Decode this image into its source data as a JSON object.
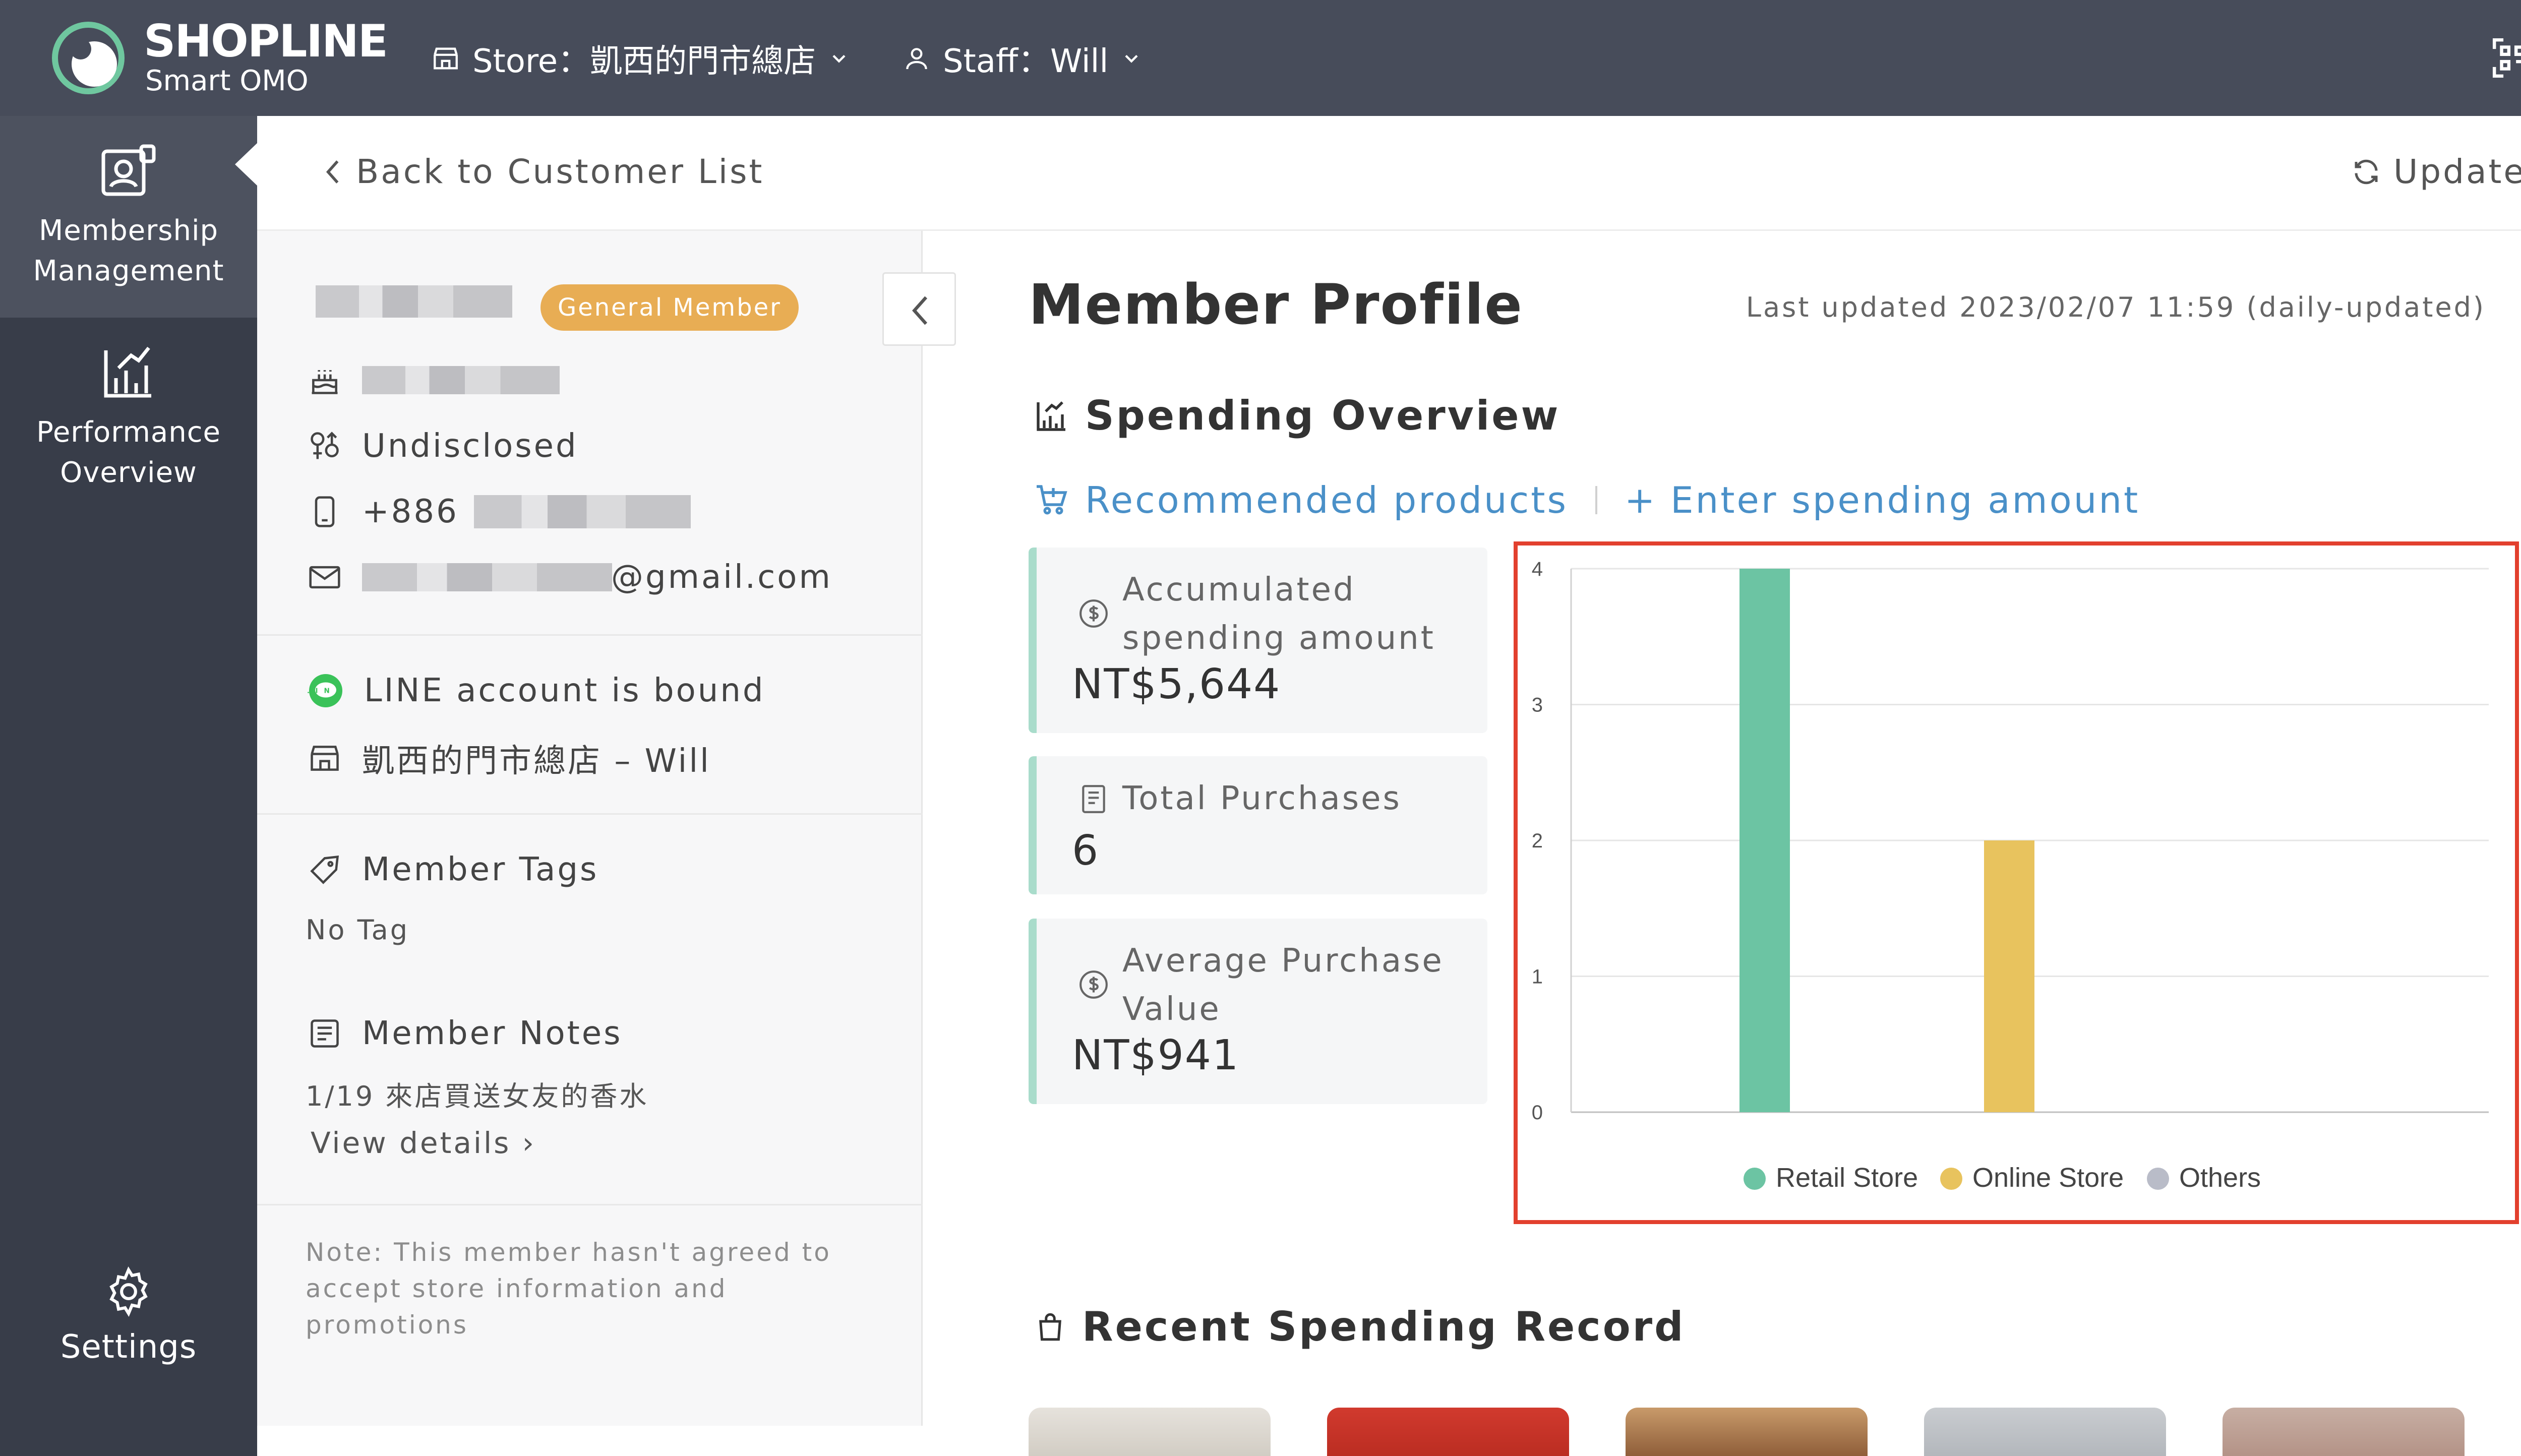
{
  "topbar": {
    "brand": "SHOPLINE",
    "brand_sub": "Smart OMO",
    "store_label": "Store：凱西的門市總店",
    "staff_label": "Staff：Will"
  },
  "nav": {
    "items": [
      {
        "label": "Membership Management",
        "icon": "member-card-icon",
        "active": true
      },
      {
        "label": "Performance Overview",
        "icon": "chart-icon",
        "active": false
      },
      {
        "label": "Settings",
        "icon": "gear-icon",
        "active": false
      }
    ]
  },
  "header": {
    "back_label": "Back to Customer List",
    "update_label": "Update"
  },
  "member": {
    "tier": "General Member",
    "gender": "Undisclosed",
    "phone_prefix": "+886",
    "email_suffix": "@gmail.com",
    "line_status": "LINE account is bound",
    "store_staff": "凱西的門市總店 – Will",
    "tags_title": "Member Tags",
    "tags_value": "No Tag",
    "notes_title": "Member Notes",
    "notes_value": "1/19 來店買送女友的香水",
    "view_details": "View details ›",
    "consent_note": "Note: This member hasn't agreed to accept store information and promotions"
  },
  "profile": {
    "title": "Member Profile",
    "last_updated": "Last updated 2023/02/07 11:59 (daily-updated)",
    "spending_title": "Spending Overview",
    "recommended": "Recommended products",
    "enter_amount": "+ Enter spending amount",
    "recent_title": "Recent Spending Record",
    "stats": [
      {
        "label": "Accumulated spending amount",
        "value": "NT$5,644",
        "icon": "dollar-icon"
      },
      {
        "label": "Total Purchases",
        "value": "6",
        "icon": "receipt-icon"
      },
      {
        "label": "Average Purchase Value",
        "value": "NT$941",
        "icon": "dollar-icon"
      }
    ]
  },
  "colors": {
    "retail": "#6cc4a3",
    "online": "#e8c35e",
    "others": "#b9bcc8",
    "highlight": "#e2402e",
    "link": "#4a90c8"
  },
  "chart_data": {
    "type": "bar",
    "categories": [
      "Retail Store",
      "Online Store",
      "Others"
    ],
    "values": [
      4,
      2,
      0
    ],
    "ylim": [
      0,
      4
    ],
    "yticks": [
      "0",
      "1",
      "2",
      "3",
      "4"
    ],
    "legend": [
      "Retail Store",
      "Online Store",
      "Others"
    ],
    "legend_position": "bottom",
    "grid": true
  }
}
